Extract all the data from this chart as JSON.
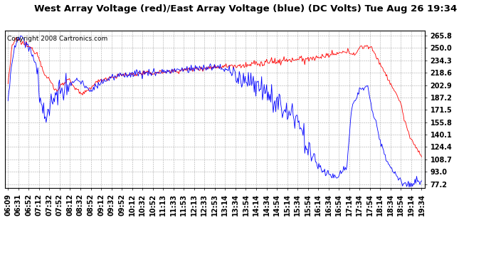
{
  "title": "West Array Voltage (red)/East Array Voltage (blue) (DC Volts) Tue Aug 26 19:34",
  "copyright": "Copyright 2008 Cartronics.com",
  "yticks": [
    77.2,
    93.0,
    108.7,
    124.4,
    140.1,
    155.8,
    171.5,
    187.2,
    202.9,
    218.6,
    234.3,
    250.0,
    265.8
  ],
  "ylim": [
    72.0,
    272.0
  ],
  "xtick_labels": [
    "06:09",
    "06:31",
    "06:52",
    "07:12",
    "07:32",
    "07:52",
    "08:12",
    "08:32",
    "08:52",
    "09:12",
    "09:32",
    "09:52",
    "10:12",
    "10:32",
    "10:52",
    "11:13",
    "11:33",
    "11:53",
    "12:13",
    "12:33",
    "12:53",
    "13:14",
    "13:34",
    "13:54",
    "14:14",
    "14:34",
    "14:54",
    "15:14",
    "15:34",
    "15:54",
    "16:14",
    "16:34",
    "16:54",
    "17:14",
    "17:34",
    "17:54",
    "18:14",
    "18:34",
    "18:54",
    "19:14",
    "19:34"
  ],
  "background_color": "#ffffff",
  "plot_bg_color": "#ffffff",
  "grid_color": "#aaaaaa",
  "red_color": "#ff0000",
  "blue_color": "#0000ff",
  "title_fontsize": 9.5,
  "tick_fontsize": 7,
  "copyright_fontsize": 6.5,
  "red_data": [
    205,
    252,
    262,
    258,
    255,
    252,
    248,
    244,
    230,
    215,
    210,
    200,
    195,
    205,
    208,
    210,
    200,
    195,
    190,
    195,
    200,
    205,
    208,
    210,
    212,
    213,
    214,
    215,
    216,
    216,
    217,
    217,
    218,
    218,
    218,
    218,
    219,
    219,
    220,
    220,
    221,
    221,
    222,
    222,
    223,
    223,
    224,
    224,
    225,
    225,
    226,
    226,
    227,
    227,
    228,
    228,
    229,
    229,
    230,
    230,
    231,
    231,
    232,
    232,
    233,
    233,
    234,
    234,
    235,
    235,
    236,
    236,
    237,
    237,
    238,
    238,
    239,
    240,
    241,
    242,
    243,
    244,
    245,
    244,
    243,
    250,
    252,
    253,
    248,
    240,
    230,
    220,
    210,
    200,
    190,
    180,
    155,
    140,
    130,
    120,
    110
  ],
  "blue_data": [
    185,
    235,
    258,
    265,
    260,
    250,
    240,
    225,
    180,
    155,
    175,
    185,
    190,
    195,
    200,
    205,
    208,
    210,
    205,
    200,
    195,
    200,
    205,
    208,
    210,
    212,
    213,
    215,
    216,
    217,
    217,
    218,
    218,
    218,
    218,
    219,
    219,
    220,
    220,
    221,
    221,
    222,
    222,
    223,
    223,
    224,
    224,
    225,
    225,
    226,
    226,
    225,
    224,
    222,
    220,
    218,
    215,
    212,
    210,
    208,
    205,
    200,
    195,
    190,
    185,
    180,
    175,
    170,
    165,
    160,
    155,
    150,
    120,
    115,
    110,
    105,
    95,
    90,
    88,
    85,
    90,
    95,
    100,
    170,
    185,
    195,
    200,
    205,
    170,
    155,
    130,
    115,
    105,
    95,
    88,
    82,
    78,
    75,
    78,
    82,
    78
  ]
}
